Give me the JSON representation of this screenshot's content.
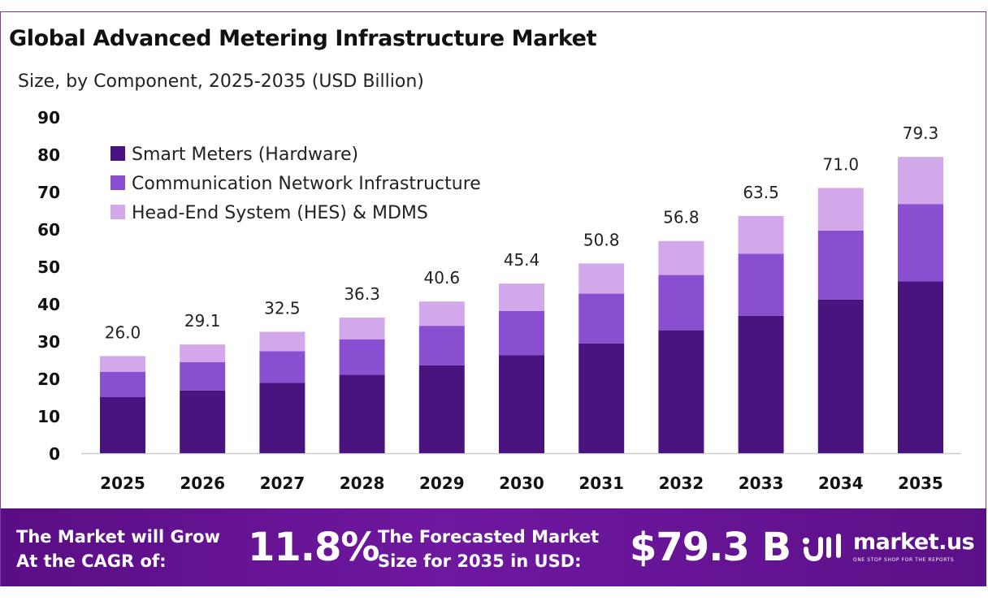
{
  "title": "Global Advanced Metering Infrastructure Market",
  "subtitle": "Size, by Component, 2025-2035 (USD Billion)",
  "chart_data": {
    "type": "bar",
    "stacked": true,
    "categories": [
      "2025",
      "2026",
      "2027",
      "2028",
      "2029",
      "2030",
      "2031",
      "2032",
      "2033",
      "2034",
      "2035"
    ],
    "series": [
      {
        "name": "Smart Meters (Hardware)",
        "color": "#4a1480",
        "values": [
          15.0,
          16.8,
          18.8,
          21.0,
          23.5,
          26.2,
          29.4,
          32.9,
          36.8,
          41.1,
          46.0
        ]
      },
      {
        "name": "Communication Network Infrastructure",
        "color": "#8a4fd1",
        "values": [
          6.8,
          7.6,
          8.5,
          9.5,
          10.6,
          11.9,
          13.3,
          14.8,
          16.6,
          18.5,
          20.7
        ]
      },
      {
        "name": "Head-End System (HES) & MDMS",
        "color": "#d3a8ea",
        "values": [
          4.2,
          4.7,
          5.2,
          5.8,
          6.5,
          7.3,
          8.1,
          9.1,
          10.1,
          11.4,
          12.6
        ]
      }
    ],
    "totals": [
      "26.0",
      "29.1",
      "32.5",
      "36.3",
      "40.6",
      "45.4",
      "50.8",
      "56.8",
      "63.5",
      "71.0",
      "79.3"
    ],
    "yticks": [
      0,
      10,
      20,
      30,
      40,
      50,
      60,
      70,
      80,
      90
    ],
    "ylim": [
      0,
      90
    ],
    "grid": false,
    "legend_position": "top-left"
  },
  "footer": {
    "cagr_line1": "The Market will Grow",
    "cagr_line2": "At the CAGR of:",
    "cagr_value": "11.8%",
    "size_line1": "The Forecasted Market",
    "size_line2": "Size for 2035 in USD:",
    "size_value": "$79.3 B",
    "brand_name": "market.us",
    "brand_tagline": "ONE STOP SHOP FOR THE REPORTS"
  }
}
